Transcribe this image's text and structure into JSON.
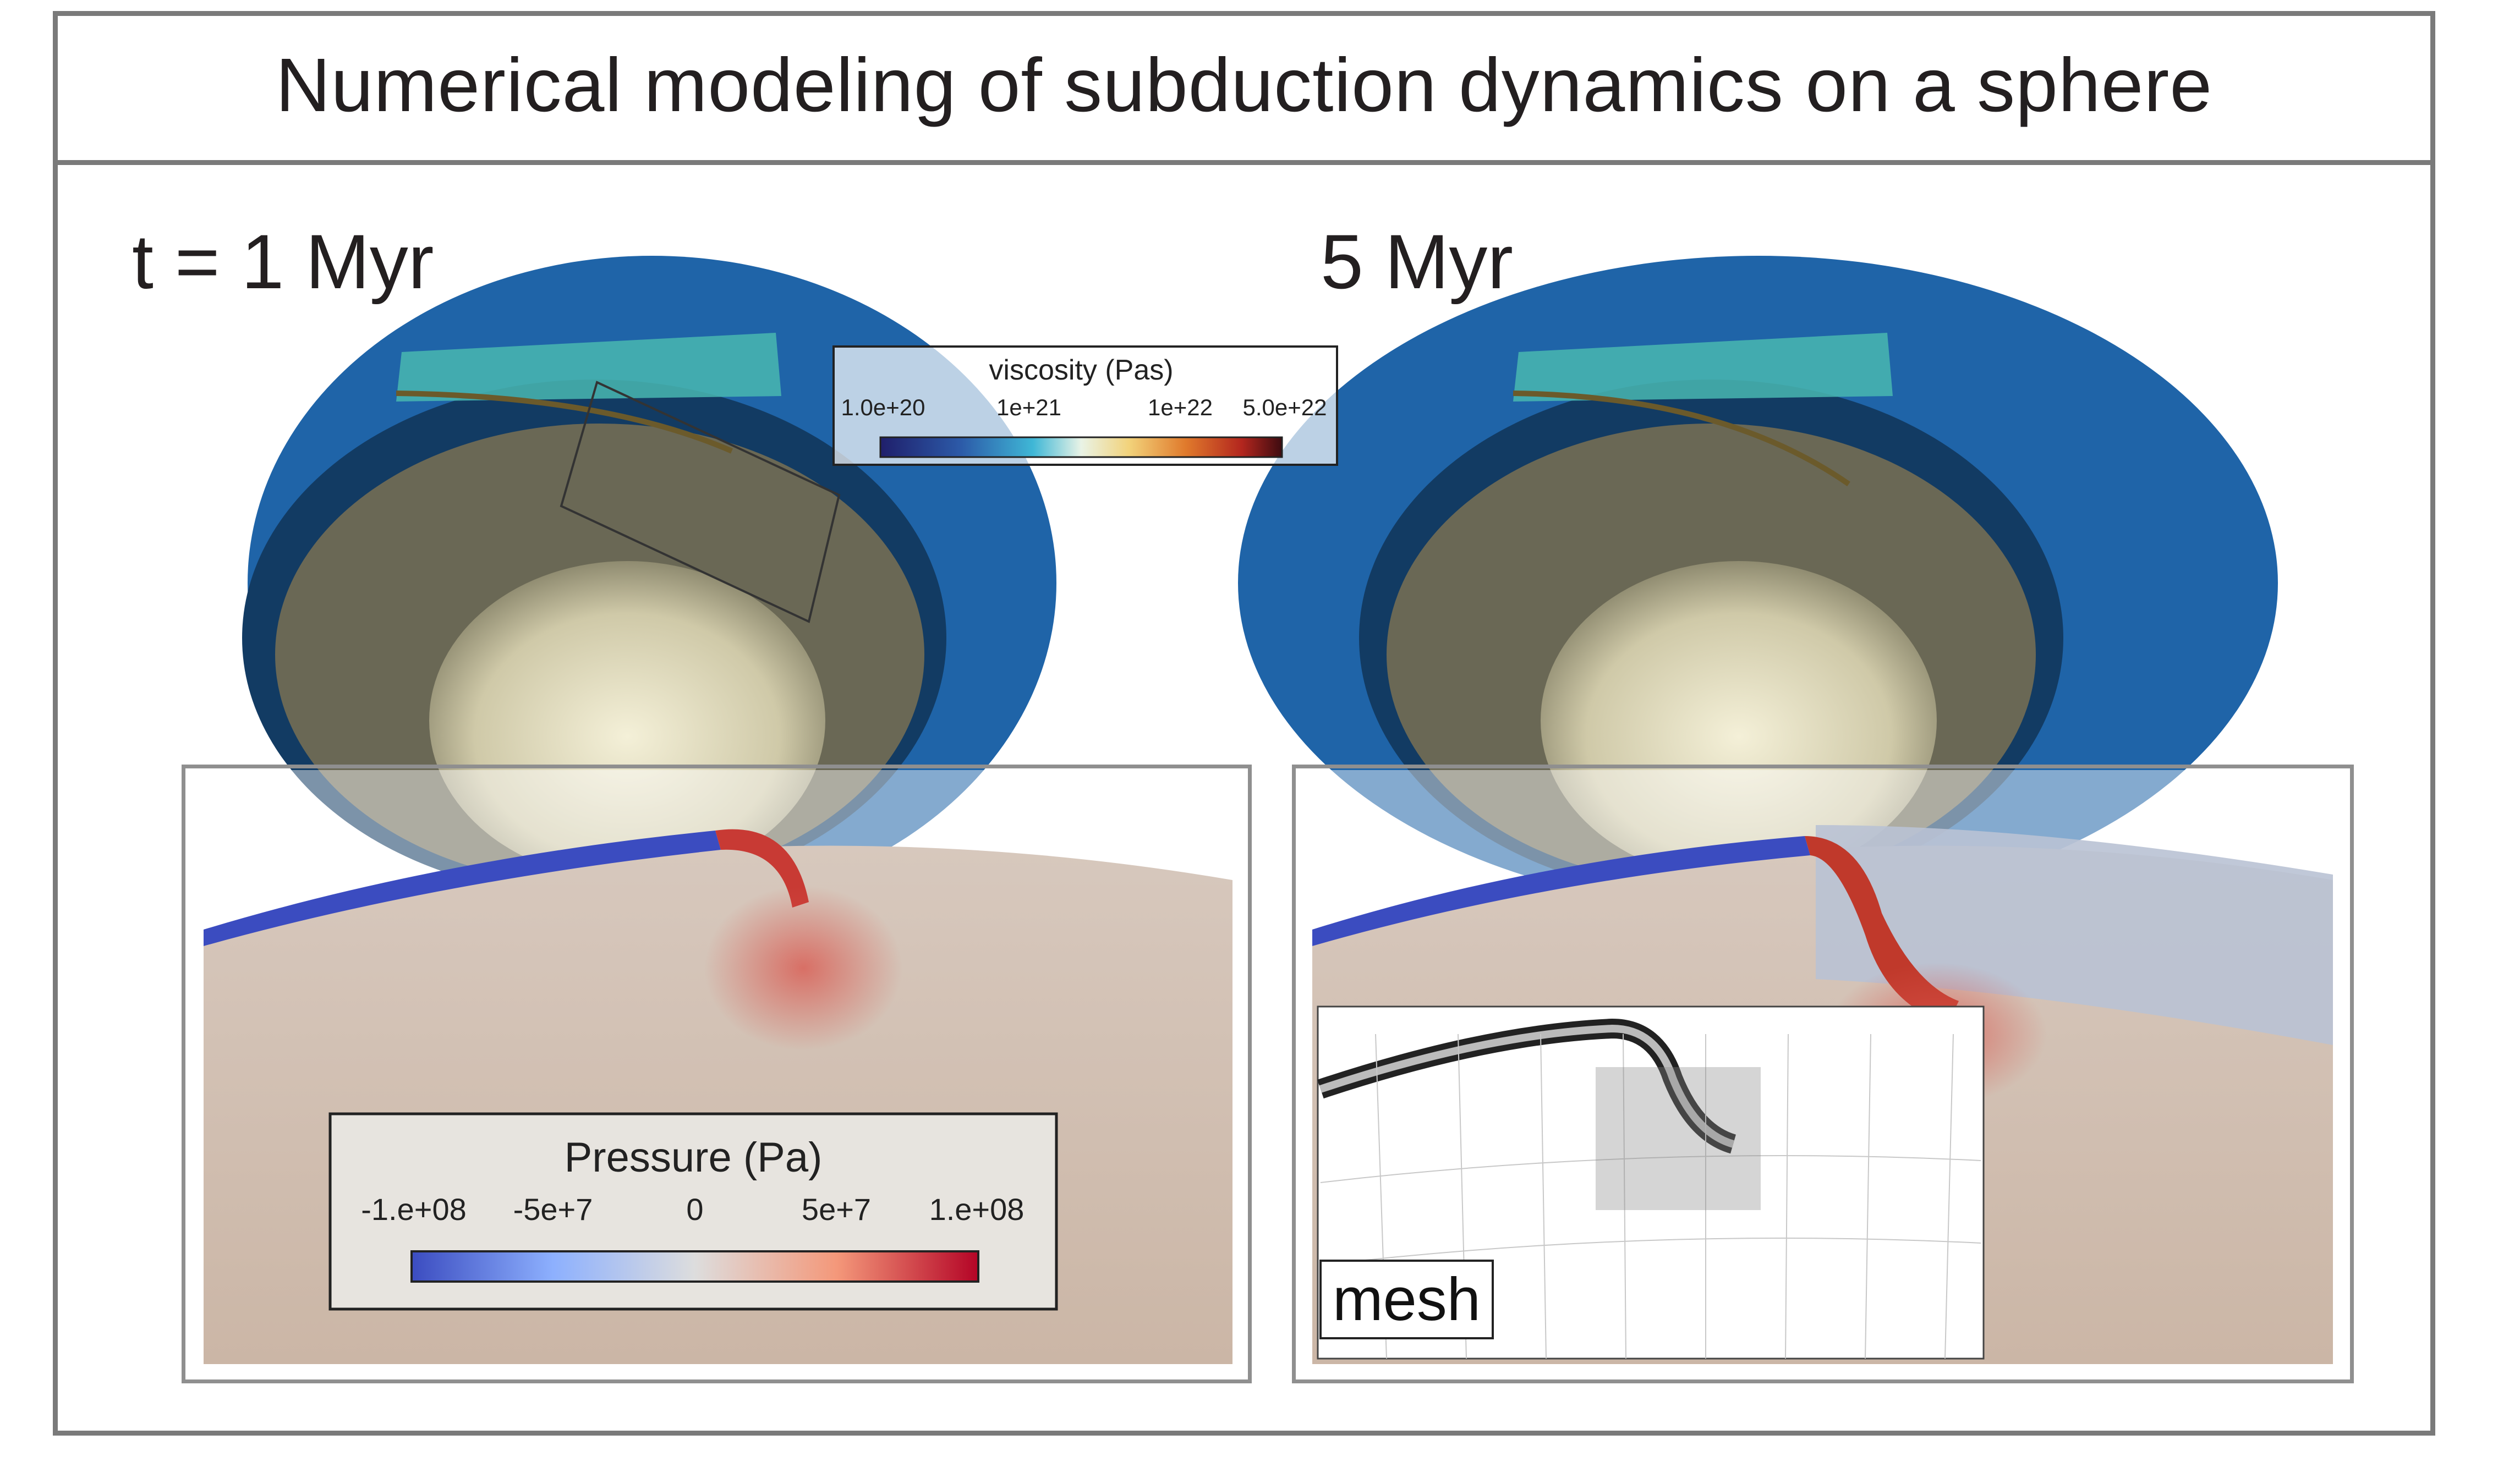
{
  "title": "Numerical modeling of subduction dynamics on a sphere",
  "left_panel": {
    "time_label": "t = 1 Myr"
  },
  "right_panel": {
    "time_label": "5 Myr",
    "mesh_label": "mesh"
  },
  "viscosity_legend": {
    "title": "viscosity  (Pas)",
    "ticks": [
      "1.0e+20",
      "1e+21",
      "1e+22",
      "5.0e+22"
    ],
    "colors": [
      "#1f1f6b",
      "#2c5aa8",
      "#3fb7d6",
      "#e9f3e6",
      "#f2d27a",
      "#e07a2c",
      "#b3261e",
      "#3d0b10"
    ]
  },
  "pressure_legend": {
    "title": "Pressure  (Pa)",
    "ticks": [
      "-1.e+08",
      "-5e+7",
      "0",
      "5e+7",
      "1.e+08"
    ],
    "colors": [
      "#3b4cc0",
      "#8db0fe",
      "#dddddd",
      "#f4987a",
      "#b40426"
    ]
  }
}
